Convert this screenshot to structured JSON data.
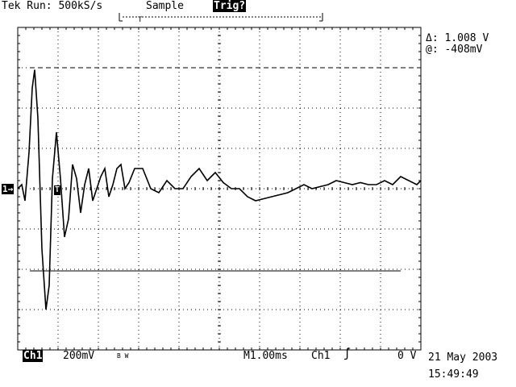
{
  "header": {
    "status": "Tek Run: 500kS/s",
    "acq_mode": "Sample",
    "trigger_state": "Trig?"
  },
  "cursors": {
    "delta": "Δ: 1.008 V",
    "at": "@: -408mV"
  },
  "footer": {
    "channel": "Ch1",
    "volts_per_div": "200mV",
    "bw_limit_mark": "B W",
    "timebase": "M1.00ms",
    "trigger_source": "Ch1",
    "trigger_slope_icon": "rising-edge-icon",
    "trigger_level": "0 V",
    "date": "21 May 2003",
    "time": "15:49:49"
  },
  "markers": {
    "channel": "1→",
    "trigger": "T"
  },
  "colors": {
    "background": "#ffffff",
    "trace": "#000000",
    "graticule": "#000000"
  },
  "chart_data": {
    "type": "line",
    "x_unit": "ms",
    "y_unit": "V",
    "xlim": [
      -0.4,
      9.6
    ],
    "ylim": [
      -0.8,
      0.8
    ],
    "grid": true,
    "series": [
      {
        "x": [
          -0.4,
          -0.3,
          -0.22,
          -0.12,
          -0.04,
          0.02,
          0.1,
          0.2,
          0.3,
          0.38,
          0.46,
          0.56,
          0.66,
          0.76,
          0.86,
          0.96,
          1.06,
          1.16,
          1.26,
          1.36,
          1.46,
          1.56,
          1.66,
          1.76,
          1.86,
          1.96,
          2.06,
          2.16,
          2.26,
          2.36,
          2.5,
          2.7,
          2.9,
          3.1,
          3.3,
          3.5,
          3.7,
          3.9,
          4.1,
          4.3,
          4.5,
          4.7,
          4.9,
          5.1,
          5.3,
          5.5,
          5.7,
          5.9,
          6.1,
          6.3,
          6.5,
          6.7,
          6.9,
          7.1,
          7.3,
          7.5,
          7.7,
          7.9,
          8.1,
          8.3,
          8.5,
          8.7,
          8.9,
          9.1,
          9.3,
          9.5,
          9.6
        ],
        "y": [
          0.0,
          0.02,
          -0.06,
          0.18,
          0.5,
          0.59,
          0.35,
          -0.3,
          -0.6,
          -0.48,
          0.05,
          0.28,
          0.05,
          -0.24,
          -0.15,
          0.12,
          0.05,
          -0.12,
          0.02,
          0.1,
          -0.06,
          0.0,
          0.06,
          0.1,
          -0.04,
          0.02,
          0.1,
          0.12,
          0.0,
          0.03,
          0.1,
          0.1,
          0.0,
          -0.02,
          0.04,
          0.0,
          0.0,
          0.06,
          0.1,
          0.04,
          0.08,
          0.03,
          0.0,
          0.0,
          -0.04,
          -0.06,
          -0.05,
          -0.04,
          -0.03,
          -0.02,
          0.0,
          0.02,
          0.0,
          0.01,
          0.02,
          0.04,
          0.03,
          0.02,
          0.03,
          0.02,
          0.02,
          0.04,
          0.02,
          0.06,
          0.04,
          0.02,
          0.04
        ]
      }
    ],
    "cursor_lines": {
      "upper_v": 0.6,
      "lower_v": -0.408
    }
  }
}
